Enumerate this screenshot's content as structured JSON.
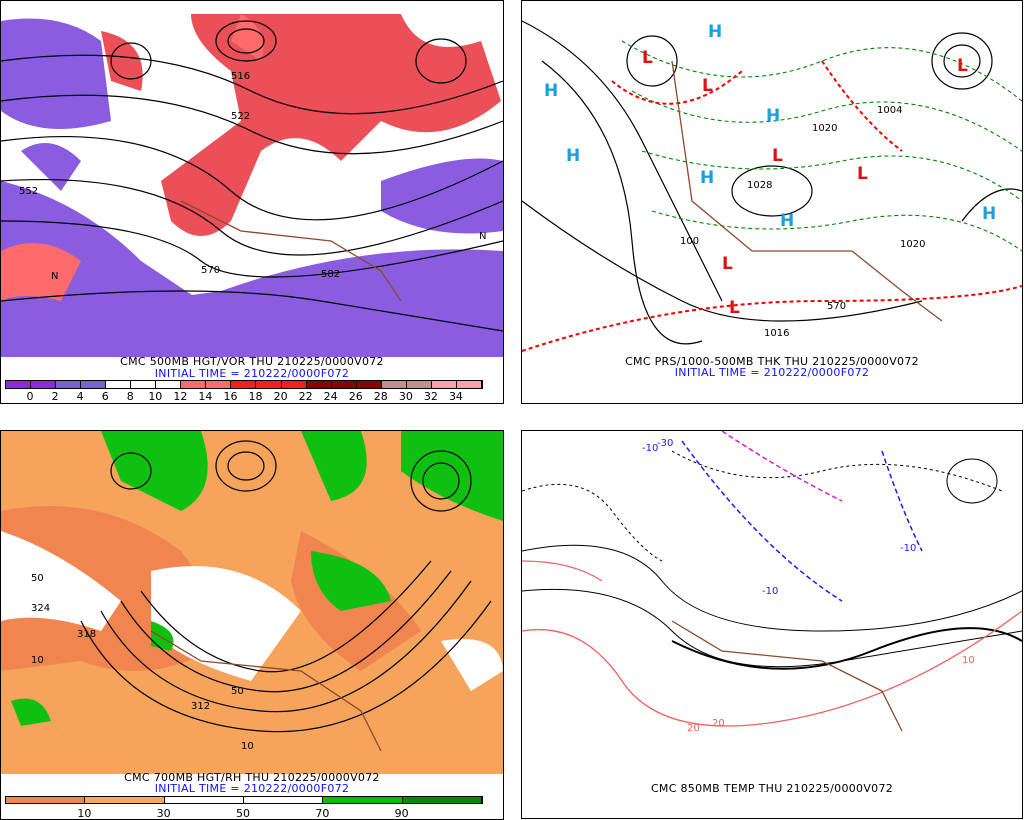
{
  "panels": [
    {
      "title": "CMC 500MB HGT/VOR THU 210225/0000V072",
      "initial": "INITIAL TIME = 210222/0000F072",
      "colorbar": {
        "colors": [
          "#8a2be2",
          "#8a2be2",
          "#7b5fd6",
          "#7b5fd6",
          "#ffffff",
          "#ffffff",
          "#ffffff",
          "#ff6a6a",
          "#ff6a6a",
          "#ee2020",
          "#ee2020",
          "#ee2020",
          "#8b0000",
          "#8b0000",
          "#8b0000",
          "#c09090",
          "#c09090",
          "#ffa0b0",
          "#ffa0b0"
        ],
        "ticks": [
          "0",
          "2",
          "4",
          "6",
          "8",
          "10",
          "12",
          "14",
          "16",
          "18",
          "20",
          "22",
          "24",
          "26",
          "28",
          "30",
          "32",
          "34"
        ]
      },
      "labels": [
        "552",
        "522",
        "516",
        "570",
        "582",
        "N",
        "N"
      ]
    },
    {
      "title": "CMC PRS/1000-500MB THK THU 210225/0000V072",
      "initial": "INITIAL TIME = 210222/0000F072",
      "markers": [
        "H",
        "H",
        "H",
        "H",
        "H",
        "H",
        "H",
        "L",
        "L",
        "L",
        "L",
        "L",
        "L",
        "L"
      ],
      "labels": [
        "1020",
        "1028",
        "1004",
        "1020",
        "570",
        "1016",
        "100"
      ]
    },
    {
      "title": "CMC 700MB HGT/RH THU 210225/0000V072",
      "initial": "INITIAL TIME = 210222/0000F072",
      "colorbar": {
        "colors": [
          "#f08850",
          "#f8a860",
          "#ffffff",
          "#ffffff",
          "#00c000",
          "#008a00"
        ],
        "ticks": [
          "10",
          "30",
          "50",
          "70",
          "90"
        ]
      },
      "labels": [
        "50",
        "324",
        "318",
        "312",
        "10",
        "50",
        "10"
      ]
    },
    {
      "title": "CMC 850MB TEMP THU 210225/0000V072",
      "labels": [
        "-10",
        "-10",
        "-10",
        "10",
        "20",
        "20",
        "-30"
      ]
    }
  ]
}
